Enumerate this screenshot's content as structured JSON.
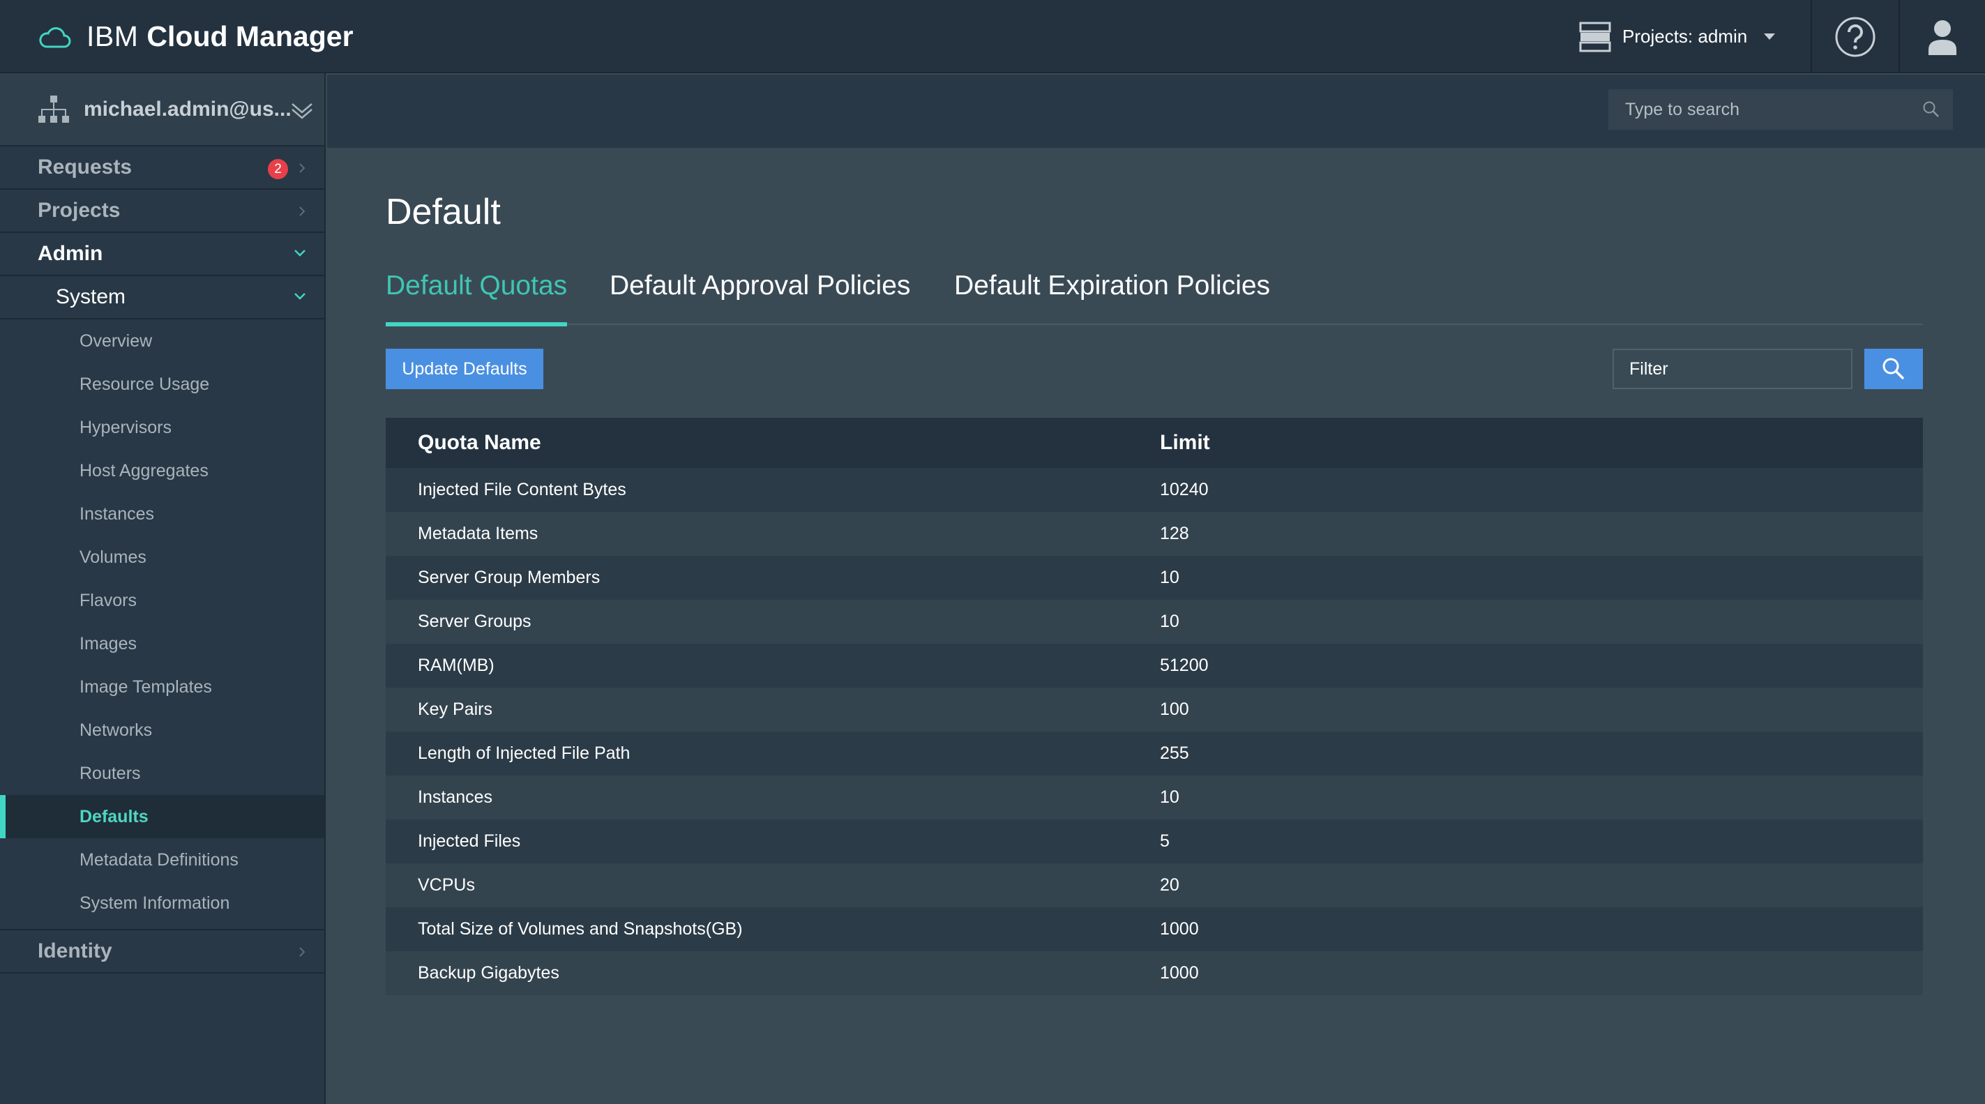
{
  "header": {
    "brand_prefix": "IBM",
    "brand_name": "Cloud Manager",
    "projects_label": "Projects: admin"
  },
  "account": {
    "name": "michael.admin@us..."
  },
  "search": {
    "placeholder": "Type to search"
  },
  "sidebar": {
    "requests": {
      "label": "Requests",
      "badge": "2"
    },
    "projects": {
      "label": "Projects"
    },
    "admin": {
      "label": "Admin"
    },
    "system": {
      "label": "System"
    },
    "system_items": [
      "Overview",
      "Resource Usage",
      "Hypervisors",
      "Host Aggregates",
      "Instances",
      "Volumes",
      "Flavors",
      "Images",
      "Image Templates",
      "Networks",
      "Routers",
      "Defaults",
      "Metadata Definitions",
      "System Information"
    ],
    "identity": {
      "label": "Identity"
    }
  },
  "main": {
    "title": "Default",
    "tabs": [
      "Default Quotas",
      "Default Approval Policies",
      "Default Expiration Policies"
    ],
    "update_button": "Update Defaults",
    "filter_placeholder": "Filter",
    "table": {
      "headers": [
        "Quota Name",
        "Limit"
      ],
      "rows": [
        [
          "Injected File Content Bytes",
          "10240"
        ],
        [
          "Metadata Items",
          "128"
        ],
        [
          "Server Group Members",
          "10"
        ],
        [
          "Server Groups",
          "10"
        ],
        [
          "RAM(MB)",
          "51200"
        ],
        [
          "Key Pairs",
          "100"
        ],
        [
          "Length of Injected File Path",
          "255"
        ],
        [
          "Instances",
          "10"
        ],
        [
          "Injected Files",
          "5"
        ],
        [
          "VCPUs",
          "20"
        ],
        [
          "Total Size of Volumes and Snapshots(GB)",
          "1000"
        ],
        [
          "Backup Gigabytes",
          "1000"
        ]
      ]
    }
  },
  "colors": {
    "accent": "#41d6c3",
    "primary_button": "#4a90e2",
    "badge": "#e8404a",
    "topbar": "#243240",
    "content_bg": "#3a4a55"
  }
}
